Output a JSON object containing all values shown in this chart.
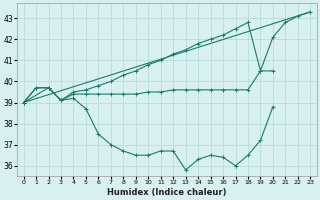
{
  "xlabel": "Humidex (Indice chaleur)",
  "x": [
    0,
    1,
    2,
    3,
    4,
    5,
    6,
    7,
    8,
    9,
    10,
    11,
    12,
    13,
    14,
    15,
    16,
    17,
    18,
    19,
    20,
    21,
    22,
    23
  ],
  "line_top": [
    39,
    39.7,
    39.7,
    39.1,
    39.5,
    39.6,
    39.8,
    40.0,
    40.3,
    40.5,
    40.8,
    41.0,
    41.3,
    41.5,
    41.8,
    42.0,
    42.2,
    42.5,
    42.8,
    40.5,
    42.1,
    42.8,
    43.1,
    43.3
  ],
  "line_mid": [
    39,
    39.7,
    39.7,
    39.1,
    39.4,
    39.4,
    39.4,
    39.4,
    39.4,
    39.4,
    39.5,
    39.5,
    39.6,
    39.6,
    39.6,
    39.6,
    39.6,
    39.6,
    39.6,
    40.5,
    40.5,
    null,
    null,
    null
  ],
  "line_bot": [
    39,
    null,
    39.7,
    39.1,
    39.2,
    38.7,
    37.5,
    37.0,
    36.7,
    36.5,
    36.5,
    36.7,
    36.7,
    35.8,
    36.3,
    36.5,
    36.4,
    36.0,
    36.5,
    37.2,
    38.8,
    null,
    null,
    null
  ],
  "line_color": "#1a7a6e",
  "bg_color": "#d8f0f0",
  "grid_color": "#b0d8d8",
  "ylim": [
    35.5,
    43.7
  ],
  "yticks": [
    36,
    37,
    38,
    39,
    40,
    41,
    42,
    43
  ],
  "xlim": [
    -0.5,
    23.5
  ]
}
